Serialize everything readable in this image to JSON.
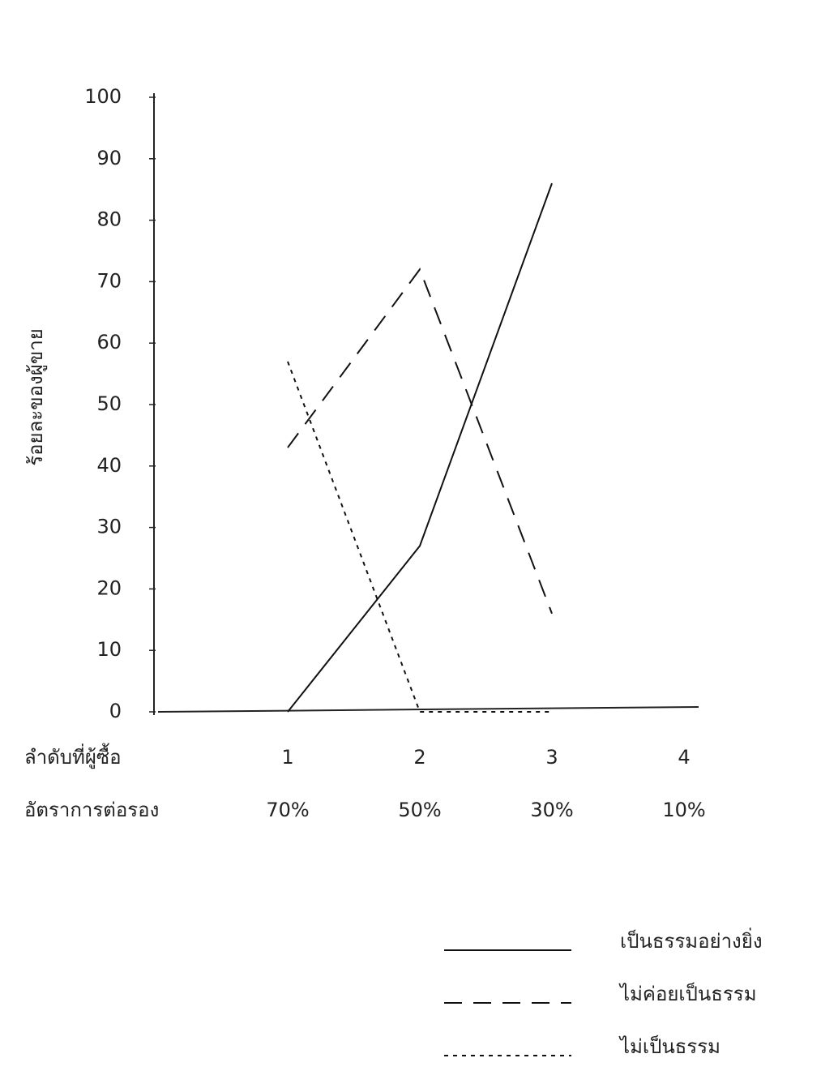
{
  "chart_data": {
    "type": "line",
    "y_label": "ร้อยละของผู้ขาย",
    "x_label": "ลำดับที่ผู้ซื้อ",
    "rate_label": "อัตราการต่อรอง",
    "categories": [
      "1",
      "2",
      "3",
      "4"
    ],
    "rates": [
      "70%",
      "50%",
      "30%",
      "10%"
    ],
    "ylim": [
      0,
      100
    ],
    "yticks": [
      0,
      10,
      20,
      30,
      40,
      50,
      60,
      70,
      80,
      90,
      100
    ],
    "series": [
      {
        "name": "เป็นธรรมอย่างยิ่ง",
        "color": "#111111",
        "style": "solid",
        "values": [
          0,
          27,
          86,
          null
        ]
      },
      {
        "name": "ไม่ค่อยเป็นธรรม",
        "color": "#111111",
        "style": "dashed",
        "values": [
          43,
          72,
          16,
          null
        ]
      },
      {
        "name": "ไม่เป็นธรรม",
        "color": "#111111",
        "style": "dotted",
        "values": [
          57,
          0,
          0,
          null
        ]
      }
    ]
  }
}
